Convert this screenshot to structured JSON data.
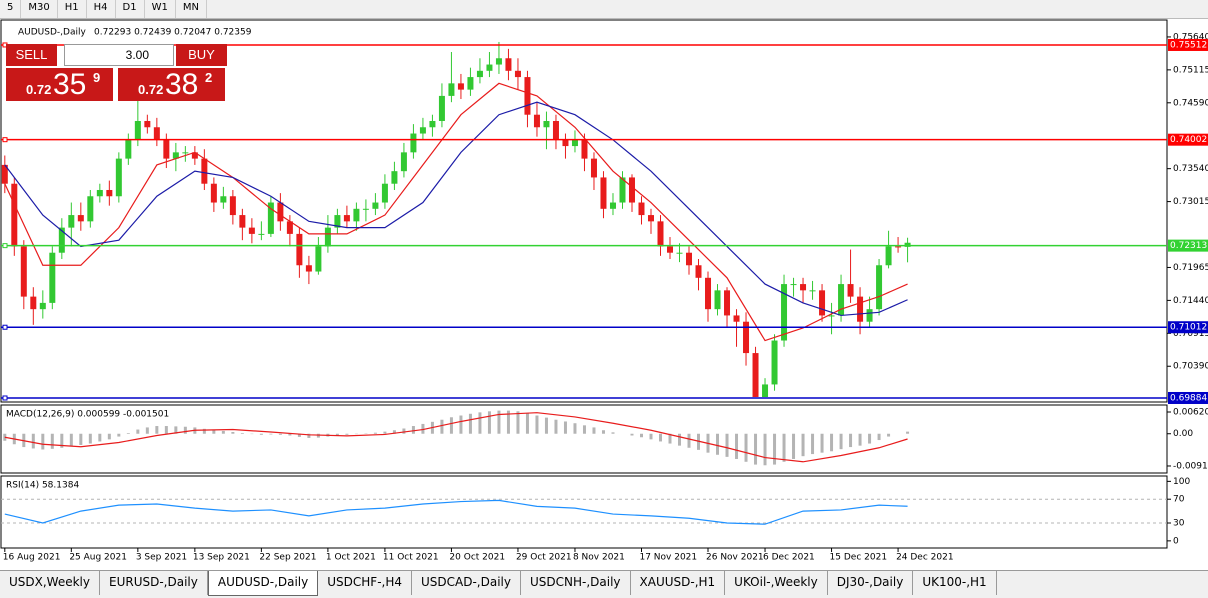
{
  "toolbar": {
    "timeframes": [
      "5",
      "M30",
      "H1",
      "H4",
      "D1",
      "W1",
      "MN"
    ]
  },
  "trade_panel": {
    "sell": "SELL",
    "buy": "BUY",
    "volume": "3.00",
    "sell_price": {
      "big": "0.72",
      "main": "35",
      "sup": "9"
    },
    "buy_price": {
      "big": "0.72",
      "main": "38",
      "sup": "2"
    }
  },
  "chart_data": [
    {
      "type": "candlestick",
      "title": "AUDUSD-,Daily",
      "subtitle": "0.72293 0.72439 0.72047 0.72359",
      "xlim": [
        -0.4,
        122.3
      ],
      "ylim": [
        0.6982,
        0.7591
      ],
      "xticks": [
        {
          "value": 0,
          "label": "16 Aug 2021"
        },
        {
          "value": 7,
          "label": "25 Aug 2021"
        },
        {
          "value": 14,
          "label": "3 Sep 2021"
        },
        {
          "value": 20,
          "label": "13 Sep 2021"
        },
        {
          "value": 27,
          "label": "22 Sep 2021"
        },
        {
          "value": 34,
          "label": "1 Oct 2021"
        },
        {
          "value": 40,
          "label": "11 Oct 2021"
        },
        {
          "value": 47,
          "label": "20 Oct 2021"
        },
        {
          "value": 54,
          "label": "29 Oct 2021"
        },
        {
          "value": 60,
          "label": "8 Nov 2021"
        },
        {
          "value": 67,
          "label": "17 Nov 2021"
        },
        {
          "value": 74,
          "label": "26 Nov 2021"
        },
        {
          "value": 80,
          "label": "6 Dec 2021"
        },
        {
          "value": 87,
          "label": "15 Dec 2021"
        },
        {
          "value": 94,
          "label": "24 Dec 2021"
        }
      ],
      "yticks": [
        {
          "value": 0.7564,
          "label": "0.75640"
        },
        0.75115,
        {
          "value": 0.7459,
          "label": "0.74590"
        },
        {
          "value": 0.7354,
          "label": "0.73540"
        },
        0.73015,
        0.71965,
        {
          "value": 0.7144,
          "label": "0.71440"
        },
        0.70915,
        {
          "value": 0.7039,
          "label": "0.70390"
        }
      ],
      "up_color": "#32c832",
      "down_color": "#e81c1c",
      "open": [
        0.736,
        0.733,
        0.723,
        0.715,
        0.713,
        0.714,
        0.722,
        0.726,
        0.728,
        0.727,
        0.731,
        0.732,
        0.731,
        0.737,
        0.74,
        0.743,
        0.742,
        0.74,
        0.737,
        0.738,
        0.738,
        0.737,
        0.733,
        0.73,
        0.731,
        0.728,
        0.726,
        0.725,
        0.725,
        0.73,
        0.727,
        0.725,
        0.72,
        0.719,
        0.723,
        0.726,
        0.728,
        0.727,
        0.729,
        0.729,
        0.73,
        0.733,
        0.735,
        0.738,
        0.741,
        0.742,
        0.743,
        0.747,
        0.749,
        0.748,
        0.75,
        0.751,
        0.752,
        0.753,
        0.751,
        0.75,
        0.744,
        0.742,
        0.743,
        0.74,
        0.739,
        0.74,
        0.737,
        0.734,
        0.729,
        0.73,
        0.734,
        0.73,
        0.728,
        0.727,
        0.723,
        0.722,
        0.722,
        0.72,
        0.718,
        0.713,
        0.716,
        0.712,
        0.711,
        0.706,
        0.699,
        0.701,
        0.708,
        0.717,
        0.717,
        0.716,
        0.716,
        0.712,
        0.712,
        0.717,
        0.715,
        0.711,
        0.713,
        0.72,
        0.723,
        0.72293
      ],
      "high": [
        0.7375,
        0.734,
        0.724,
        0.7165,
        0.716,
        0.723,
        0.7275,
        0.73,
        0.73,
        0.732,
        0.733,
        0.7335,
        0.738,
        0.741,
        0.7478,
        0.744,
        0.7435,
        0.741,
        0.7395,
        0.739,
        0.739,
        0.7385,
        0.734,
        0.7325,
        0.732,
        0.729,
        0.7275,
        0.727,
        0.731,
        0.7315,
        0.728,
        0.726,
        0.7215,
        0.7245,
        0.728,
        0.729,
        0.7295,
        0.73,
        0.7305,
        0.7315,
        0.7345,
        0.7365,
        0.7395,
        0.7425,
        0.7435,
        0.744,
        0.749,
        0.754,
        0.7505,
        0.7515,
        0.753,
        0.754,
        0.7556,
        0.7545,
        0.753,
        0.751,
        0.746,
        0.7445,
        0.744,
        0.741,
        0.7415,
        0.741,
        0.738,
        0.735,
        0.7315,
        0.735,
        0.7345,
        0.731,
        0.729,
        0.728,
        0.7245,
        0.7235,
        0.723,
        0.721,
        0.719,
        0.717,
        0.7165,
        0.713,
        0.7125,
        0.707,
        0.702,
        0.709,
        0.7185,
        0.718,
        0.718,
        0.7175,
        0.717,
        0.714,
        0.7185,
        0.7225,
        0.7165,
        0.715,
        0.721,
        0.7255,
        0.7245,
        0.72439
      ],
      "low": [
        0.7315,
        0.7215,
        0.713,
        0.7105,
        0.7115,
        0.713,
        0.721,
        0.723,
        0.7255,
        0.726,
        0.73,
        0.7295,
        0.73,
        0.736,
        0.739,
        0.741,
        0.739,
        0.7355,
        0.735,
        0.7365,
        0.736,
        0.732,
        0.7285,
        0.729,
        0.7265,
        0.724,
        0.7235,
        0.724,
        0.7245,
        0.7255,
        0.723,
        0.718,
        0.717,
        0.7185,
        0.722,
        0.725,
        0.726,
        0.7255,
        0.727,
        0.728,
        0.729,
        0.732,
        0.734,
        0.737,
        0.74,
        0.7405,
        0.742,
        0.746,
        0.7465,
        0.747,
        0.749,
        0.75,
        0.7505,
        0.7495,
        0.748,
        0.742,
        0.7405,
        0.7385,
        0.7385,
        0.737,
        0.738,
        0.735,
        0.732,
        0.7275,
        0.728,
        0.729,
        0.7285,
        0.7265,
        0.725,
        0.7215,
        0.721,
        0.7205,
        0.7185,
        0.716,
        0.711,
        0.712,
        0.71,
        0.707,
        0.704,
        0.699,
        0.6995,
        0.7,
        0.707,
        0.715,
        0.714,
        0.7145,
        0.711,
        0.709,
        0.711,
        0.714,
        0.709,
        0.71,
        0.712,
        0.7195,
        0.722,
        0.72047
      ],
      "close": [
        0.733,
        0.723,
        0.715,
        0.713,
        0.714,
        0.722,
        0.726,
        0.728,
        0.727,
        0.731,
        0.732,
        0.731,
        0.737,
        0.74,
        0.743,
        0.742,
        0.74,
        0.737,
        0.738,
        0.738,
        0.737,
        0.733,
        0.73,
        0.731,
        0.728,
        0.726,
        0.725,
        0.725,
        0.73,
        0.727,
        0.725,
        0.72,
        0.719,
        0.723,
        0.726,
        0.728,
        0.727,
        0.729,
        0.729,
        0.73,
        0.733,
        0.735,
        0.738,
        0.741,
        0.742,
        0.743,
        0.747,
        0.749,
        0.748,
        0.75,
        0.751,
        0.752,
        0.753,
        0.751,
        0.75,
        0.744,
        0.742,
        0.743,
        0.74,
        0.739,
        0.74,
        0.737,
        0.734,
        0.729,
        0.73,
        0.734,
        0.73,
        0.728,
        0.727,
        0.723,
        0.722,
        0.722,
        0.72,
        0.718,
        0.713,
        0.716,
        0.712,
        0.711,
        0.706,
        0.699,
        0.701,
        0.708,
        0.717,
        0.717,
        0.716,
        0.716,
        0.712,
        0.712,
        0.717,
        0.715,
        0.711,
        0.713,
        0.72,
        0.723,
        0.72293,
        0.72359
      ],
      "series": [
        {
          "color": "#e81c1c",
          "x": [
            0,
            4,
            8,
            12,
            16,
            20,
            24,
            28,
            32,
            36,
            40,
            44,
            48,
            52,
            56,
            60,
            64,
            68,
            72,
            76,
            80,
            84,
            88,
            92,
            95
          ],
          "values": [
            0.733,
            0.72,
            0.72,
            0.726,
            0.736,
            0.738,
            0.734,
            0.729,
            0.725,
            0.725,
            0.728,
            0.736,
            0.744,
            0.749,
            0.747,
            0.742,
            0.735,
            0.73,
            0.724,
            0.718,
            0.708,
            0.71,
            0.713,
            0.715,
            0.717
          ]
        },
        {
          "color": "#1c1ca8",
          "x": [
            0,
            4,
            8,
            12,
            16,
            20,
            24,
            28,
            32,
            36,
            40,
            44,
            48,
            52,
            56,
            60,
            64,
            68,
            72,
            76,
            80,
            84,
            88,
            92,
            95
          ],
          "values": [
            0.736,
            0.728,
            0.723,
            0.724,
            0.731,
            0.735,
            0.734,
            0.731,
            0.727,
            0.726,
            0.726,
            0.73,
            0.738,
            0.744,
            0.746,
            0.744,
            0.74,
            0.735,
            0.729,
            0.723,
            0.717,
            0.714,
            0.712,
            0.7125,
            0.7145
          ]
        }
      ],
      "levels": [
        {
          "value": 0.75512,
          "color": "#ff0000"
        },
        {
          "value": 0.74002,
          "color": "#ff0000"
        },
        {
          "value": 0.72313,
          "color": "#32d232"
        },
        {
          "value": 0.71012,
          "color": "#0000c8"
        },
        {
          "value": 0.69884,
          "color": "#0000c8"
        }
      ]
    },
    {
      "type": "macd",
      "title": "MACD(12,26,9) 0.000599 -0.001501",
      "ylim": [
        -0.0112,
        0.0082
      ],
      "yticks": [
        0.006201,
        {
          "value": 0,
          "label": "0.00"
        },
        -0.009197
      ],
      "color": "#b4b4b4",
      "values": [
        -0.002,
        -0.003,
        -0.0038,
        -0.0042,
        -0.0045,
        -0.0043,
        -0.004,
        -0.0036,
        -0.0032,
        -0.0028,
        -0.0022,
        -0.0016,
        -0.0008,
        0.0002,
        0.0012,
        0.0018,
        0.0022,
        0.0022,
        0.0021,
        0.002,
        0.0018,
        0.0014,
        0.001,
        0.0008,
        0.0005,
        0.0002,
        -0.0001,
        -0.0003,
        -0.0002,
        -0.0003,
        -0.0005,
        -0.0009,
        -0.0012,
        -0.0011,
        -0.0008,
        -0.0005,
        -0.0003,
        -0.0001,
        0.0001,
        0.0003,
        0.0006,
        0.001,
        0.0015,
        0.0022,
        0.0028,
        0.0034,
        0.004,
        0.0047,
        0.0052,
        0.0057,
        0.0061,
        0.0064,
        0.0066,
        0.0066,
        0.0064,
        0.0058,
        0.0052,
        0.0046,
        0.004,
        0.0035,
        0.003,
        0.0024,
        0.0018,
        0.001,
        0.0004,
        0.0,
        -0.0005,
        -0.001,
        -0.0016,
        -0.0022,
        -0.0028,
        -0.0034,
        -0.004,
        -0.0046,
        -0.0054,
        -0.006,
        -0.0066,
        -0.0072,
        -0.008,
        -0.0088,
        -0.009,
        -0.0088,
        -0.008,
        -0.0072,
        -0.0064,
        -0.0058,
        -0.0054,
        -0.005,
        -0.0044,
        -0.0038,
        -0.0034,
        -0.0028,
        -0.0018,
        -0.0008,
        0.0,
        0.000599
      ],
      "series": [
        {
          "color": "#e81c1c",
          "x": [
            0,
            4,
            8,
            12,
            16,
            20,
            24,
            28,
            32,
            36,
            40,
            44,
            48,
            52,
            56,
            60,
            64,
            68,
            72,
            76,
            80,
            84,
            88,
            92,
            95
          ],
          "values": [
            -0.001,
            -0.003,
            -0.0037,
            -0.0025,
            -0.0005,
            0.001,
            0.0012,
            0.0005,
            -0.0003,
            -0.0006,
            -0.0002,
            0.0012,
            0.0035,
            0.0055,
            0.006,
            0.0048,
            0.003,
            0.001,
            -0.0015,
            -0.004,
            -0.0068,
            -0.008,
            -0.0062,
            -0.004,
            -0.001501
          ]
        }
      ]
    },
    {
      "type": "line",
      "title": "RSI(14) 58.1384",
      "ylim": [
        -12,
        109
      ],
      "yticks": [
        100,
        70,
        30,
        0
      ],
      "levels": [
        {
          "value": 70,
          "color": "#b4b4b4"
        },
        {
          "value": 30,
          "color": "#b4b4b4"
        }
      ],
      "series": [
        {
          "color": "#1e90ff",
          "x": [
            0,
            4,
            8,
            12,
            16,
            20,
            24,
            28,
            32,
            36,
            40,
            44,
            48,
            52,
            56,
            60,
            64,
            68,
            72,
            76,
            80,
            84,
            88,
            92,
            95
          ],
          "values": [
            45,
            30,
            50,
            60,
            62,
            55,
            50,
            52,
            42,
            52,
            55,
            62,
            66,
            68,
            58,
            55,
            45,
            42,
            38,
            30,
            28,
            50,
            52,
            60,
            58.1384
          ]
        }
      ]
    }
  ],
  "tabs": [
    "USDX,Weekly",
    "EURUSD-,Daily",
    "AUDUSD-,Daily",
    "USDCHF-,H4",
    "USDCAD-,Daily",
    "USDCNH-,Daily",
    "XAUUSD-,H1",
    "UKOil-,Weekly",
    "DJ30-,Daily",
    "UK100-,H1"
  ]
}
